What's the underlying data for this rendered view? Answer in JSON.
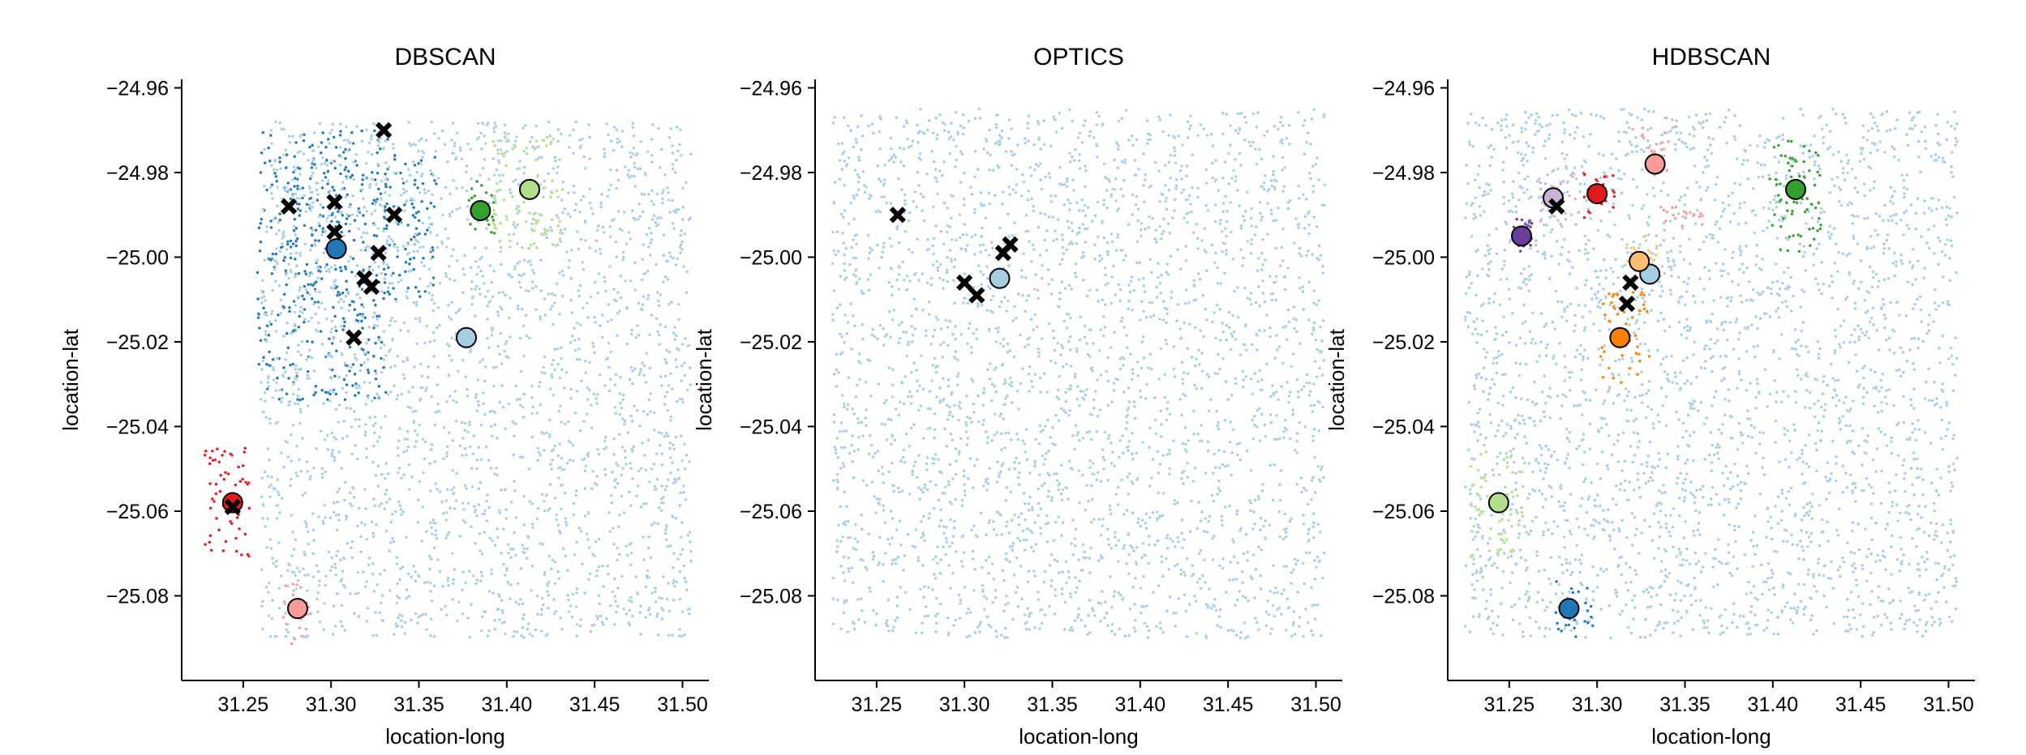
{
  "chart_data": [
    {
      "type": "scatter",
      "title": "DBSCAN",
      "xlabel": "location-long",
      "ylabel": "location-lat",
      "xlim": [
        31.215,
        31.515
      ],
      "ylim": [
        -25.1,
        -24.958
      ],
      "xticks": [
        31.25,
        31.3,
        31.35,
        31.4,
        31.45,
        31.5
      ],
      "xtick_labels": [
        "31.25",
        "31.30",
        "31.35",
        "31.40",
        "31.45",
        "31.50"
      ],
      "yticks": [
        -24.96,
        -24.98,
        -25.0,
        -25.02,
        -25.04,
        -25.06,
        -25.08
      ],
      "ytick_labels": [
        "−24.96",
        "−24.98",
        "−25.00",
        "−25.02",
        "−25.04",
        "−25.06",
        "−25.08"
      ],
      "grid": false,
      "clusters": [
        {
          "cluster": 0,
          "color": "#1f78b4",
          "center": [
            31.303,
            -24.998
          ],
          "extent": [
            [
              31.258,
              31.333,
              -25.034,
              -24.97
            ],
            [
              31.275,
              31.305,
              -24.998,
              -24.982
            ],
            [
              31.33,
              31.36,
              -25.01,
              -24.975
            ]
          ]
        },
        {
          "cluster": 1,
          "color": "#a6cee3",
          "center": [
            31.377,
            -25.019
          ],
          "extent": [
            [
              31.26,
              31.505,
              -25.09,
              -24.968
            ]
          ]
        },
        {
          "cluster": 2,
          "color": "#33a02c",
          "center": [
            31.385,
            -24.989
          ],
          "extent": [
            [
              31.378,
              31.393,
              -24.995,
              -24.982
            ]
          ]
        },
        {
          "cluster": 3,
          "color": "#b2df8a",
          "center": [
            31.413,
            -24.984
          ],
          "extent": [
            [
              31.392,
              31.432,
              -24.998,
              -24.971
            ]
          ]
        },
        {
          "cluster": 4,
          "color": "#e31a1c",
          "center": [
            31.244,
            -25.058
          ],
          "extent": [
            [
              31.228,
              31.255,
              -25.071,
              -25.045
            ]
          ]
        },
        {
          "cluster": 5,
          "color": "#fb9a99",
          "center": [
            31.281,
            -25.083
          ],
          "extent": [
            [
              31.272,
              31.29,
              -25.092,
              -25.077
            ]
          ]
        }
      ],
      "noise_medoids": [
        [
          31.33,
          -24.97
        ],
        [
          31.276,
          -24.988
        ],
        [
          31.302,
          -24.987
        ],
        [
          31.336,
          -24.99
        ],
        [
          31.302,
          -24.994
        ],
        [
          31.327,
          -24.999
        ],
        [
          31.319,
          -25.005
        ],
        [
          31.323,
          -25.007
        ],
        [
          31.313,
          -25.019
        ],
        [
          31.244,
          -25.059
        ]
      ]
    },
    {
      "type": "scatter",
      "title": "OPTICS",
      "xlabel": "location-long",
      "ylabel": "location-lat",
      "xlim": [
        31.215,
        31.515
      ],
      "ylim": [
        -25.1,
        -24.958
      ],
      "xticks": [
        31.25,
        31.3,
        31.35,
        31.4,
        31.45,
        31.5
      ],
      "xtick_labels": [
        "31.25",
        "31.30",
        "31.35",
        "31.40",
        "31.45",
        "31.50"
      ],
      "yticks": [
        -24.96,
        -24.98,
        -25.0,
        -25.02,
        -25.04,
        -25.06,
        -25.08
      ],
      "ytick_labels": [
        "−24.96",
        "−24.98",
        "−25.00",
        "−25.02",
        "−25.04",
        "−25.06",
        "−25.08"
      ],
      "grid": false,
      "clusters": [
        {
          "cluster": 0,
          "color": "#a6cee3",
          "center": [
            31.32,
            -25.005
          ],
          "extent": [
            [
              31.225,
              31.505,
              -25.09,
              -24.965
            ]
          ]
        }
      ],
      "noise_medoids": [
        [
          31.262,
          -24.99
        ],
        [
          31.3,
          -25.006
        ],
        [
          31.307,
          -25.009
        ],
        [
          31.322,
          -24.999
        ],
        [
          31.326,
          -24.997
        ]
      ]
    },
    {
      "type": "scatter",
      "title": "HDBSCAN",
      "xlabel": "location-long",
      "ylabel": "location-lat",
      "xlim": [
        31.215,
        31.515
      ],
      "ylim": [
        -25.1,
        -24.958
      ],
      "xticks": [
        31.25,
        31.3,
        31.35,
        31.4,
        31.45,
        31.5
      ],
      "xtick_labels": [
        "31.25",
        "31.30",
        "31.35",
        "31.40",
        "31.45",
        "31.50"
      ],
      "yticks": [
        -24.96,
        -24.98,
        -25.0,
        -25.02,
        -25.04,
        -25.06,
        -25.08
      ],
      "ytick_labels": [
        "−24.96",
        "−24.98",
        "−25.00",
        "−25.02",
        "−25.04",
        "−25.06",
        "−25.08"
      ],
      "grid": false,
      "clusters": [
        {
          "cluster": 0,
          "color": "#a6cee3",
          "center": [
            31.33,
            -25.004
          ],
          "extent": [
            [
              31.225,
              31.505,
              -25.09,
              -24.965
            ]
          ]
        },
        {
          "cluster": 1,
          "color": "#1f78b4",
          "center": [
            31.284,
            -25.083
          ],
          "extent": [
            [
              31.275,
              31.298,
              -25.09,
              -25.076
            ]
          ]
        },
        {
          "cluster": 2,
          "color": "#b2df8a",
          "center": [
            31.244,
            -25.058
          ],
          "extent": [
            [
              31.228,
              31.258,
              -25.071,
              -25.046
            ]
          ]
        },
        {
          "cluster": 3,
          "color": "#33a02c",
          "center": [
            31.413,
            -24.984
          ],
          "extent": [
            [
              31.398,
              31.428,
              -24.999,
              -24.971
            ]
          ]
        },
        {
          "cluster": 4,
          "color": "#fb9a99",
          "center": [
            31.333,
            -24.978
          ],
          "extent": [
            [
              31.32,
              31.345,
              -24.98,
              -24.969
            ],
            [
              31.335,
              31.36,
              -24.993,
              -24.988
            ]
          ]
        },
        {
          "cluster": 5,
          "color": "#e31a1c",
          "center": [
            31.3,
            -24.985
          ],
          "extent": [
            [
              31.292,
              31.31,
              -24.991,
              -24.979
            ]
          ]
        },
        {
          "cluster": 6,
          "color": "#fdbf6f",
          "center": [
            31.324,
            -25.001
          ],
          "extent": [
            [
              31.317,
              31.335,
              -25.006,
              -24.995
            ]
          ]
        },
        {
          "cluster": 7,
          "color": "#ff7f00",
          "center": [
            31.313,
            -25.019
          ],
          "extent": [
            [
              31.302,
              31.33,
              -25.03,
              -25.008
            ]
          ]
        },
        {
          "cluster": 8,
          "color": "#cab2d6",
          "center": [
            31.275,
            -24.986
          ],
          "extent": [
            [
              31.262,
              31.29,
              -24.993,
              -24.98
            ]
          ]
        },
        {
          "cluster": 9,
          "color": "#6a3d9a",
          "center": [
            31.257,
            -24.995
          ],
          "extent": [
            [
              31.252,
              31.263,
              -24.999,
              -24.99
            ]
          ]
        }
      ],
      "noise_medoids": [
        [
          31.277,
          -24.988
        ],
        [
          31.319,
          -25.006
        ],
        [
          31.317,
          -25.011
        ]
      ]
    }
  ]
}
